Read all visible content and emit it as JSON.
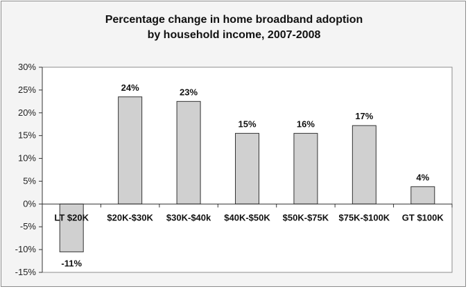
{
  "chart_data": {
    "type": "bar",
    "title_lines": [
      "Percentage change in home broadband adoption",
      "by household income, 2007-2008"
    ],
    "categories": [
      "LT $20K",
      "$20K-$30K",
      "$30K-$40k",
      "$40K-$50K",
      "$50K-$75K",
      "$75K-$100K",
      "GT $100K"
    ],
    "values": [
      -11,
      24,
      23,
      15,
      16,
      17,
      4
    ],
    "bar_heights": [
      -10.5,
      23.5,
      22.5,
      15.5,
      15.5,
      17.2,
      3.8
    ],
    "data_labels": [
      "-11%",
      "24%",
      "23%",
      "15%",
      "16%",
      "17%",
      "4%"
    ],
    "y_ticks": [
      "30%",
      "25%",
      "20%",
      "15%",
      "10%",
      "5%",
      "0%",
      "-5%",
      "-10%",
      "-15%"
    ],
    "ylim": [
      -15,
      30
    ],
    "grid": false,
    "legend": "none",
    "colors": {
      "bar_fill": "#d0d0d0",
      "bar_stroke": "#333333",
      "plot_bg": "#ffffff"
    }
  }
}
